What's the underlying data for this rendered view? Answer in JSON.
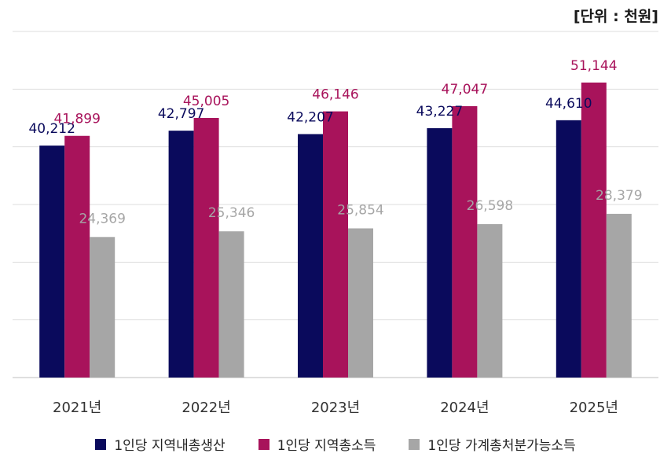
{
  "unit_label": "[단위 : 천원]",
  "chart_data": {
    "type": "bar",
    "categories": [
      "2021년",
      "2022년",
      "2023년",
      "2024년",
      "2025년"
    ],
    "series": [
      {
        "name": "1인당 지역내총생산",
        "values": [
          40212,
          42797,
          42207,
          43227,
          44610
        ],
        "labels": [
          "40,212",
          "42,797",
          "42,207",
          "43,227",
          "44,610"
        ],
        "color": "#0a0a5c",
        "label_color": "#0a0a5c"
      },
      {
        "name": "1인당 지역총소득",
        "values": [
          41899,
          45005,
          46146,
          47047,
          51144
        ],
        "labels": [
          "41,899",
          "45,005",
          "46,146",
          "47,047",
          "51,144"
        ],
        "color": "#a8135b",
        "label_color": "#a8135b"
      },
      {
        "name": "1인당 가계총처분가능소득",
        "values": [
          24369,
          25346,
          25854,
          26598,
          28379
        ],
        "labels": [
          "24,369",
          "25,346",
          "25,854",
          "26,598",
          "28,379"
        ],
        "color": "#a6a6a6",
        "label_color": "#a6a6a6"
      }
    ],
    "ylim": [
      0,
      60000
    ],
    "grid": true,
    "legend_position": "bottom"
  }
}
